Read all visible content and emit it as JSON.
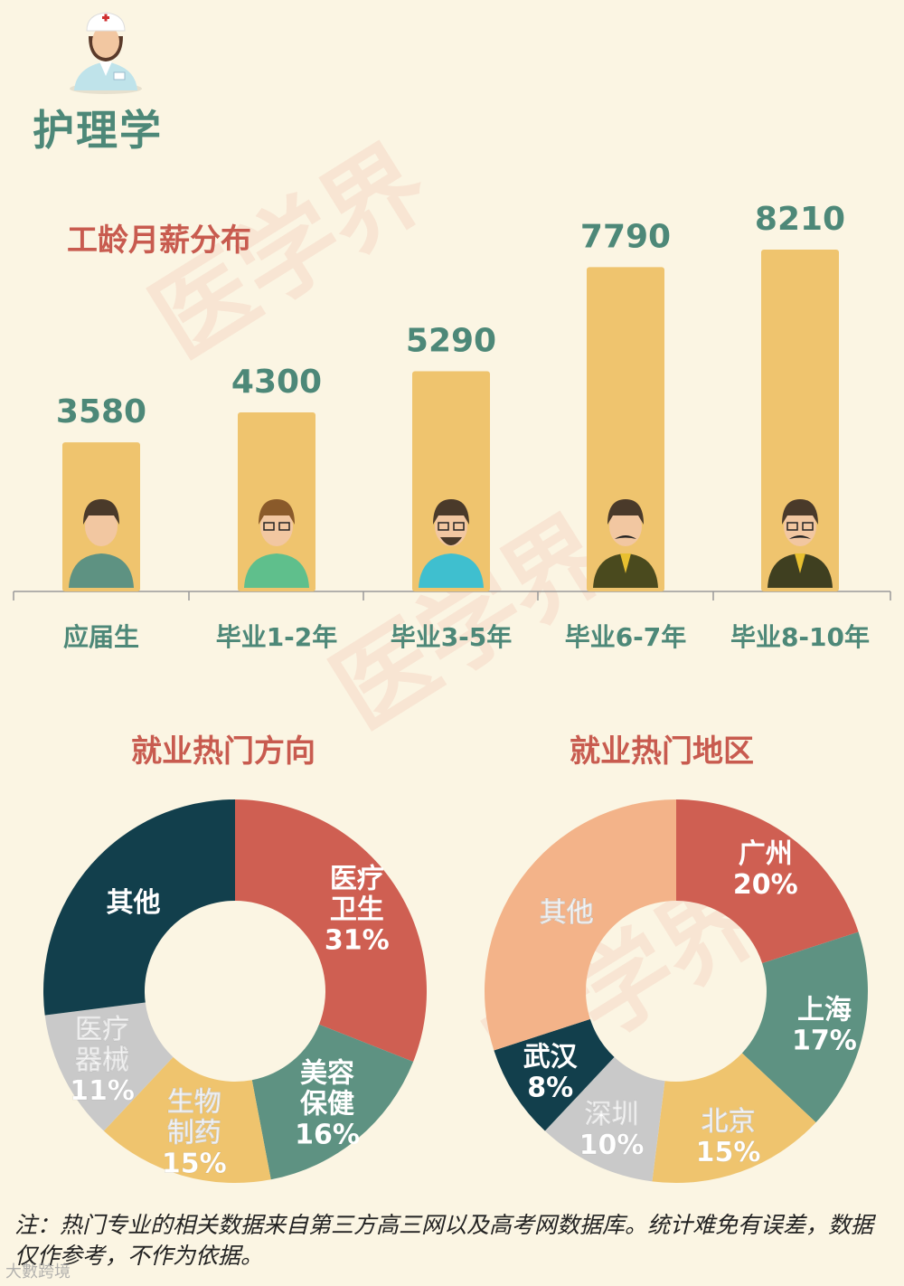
{
  "header": {
    "title": "护理学"
  },
  "sections": {
    "salary_title": "工龄月薪分布",
    "direction_title": "就业热门方向",
    "region_title": "就业热门地区"
  },
  "colors": {
    "background": "#fbf5e3",
    "bar": "#efc46e",
    "title_green": "#4d8878",
    "section_red": "#c85b4f"
  },
  "watermark": "医学界",
  "footnote": "注：热门专业的相关数据来自第三方高三网以及高考网数据库。统计难免有误差，数据仅作参考，不作为依据。",
  "brand": "大數跨境",
  "chart_data": [
    {
      "type": "bar",
      "title": "工龄月薪分布",
      "categories": [
        "应届生",
        "毕业1-2年",
        "毕业3-5年",
        "毕业6-7年",
        "毕业8-10年"
      ],
      "values": [
        3580,
        4300,
        5290,
        7790,
        8210
      ],
      "value_labels": [
        "3580",
        "4300",
        "5290",
        "7790",
        "8210"
      ],
      "icons": [
        "young-man-icon",
        "man-with-glasses-icon",
        "bearded-man-icon",
        "mustache-man-icon",
        "mustache-glasses-man-icon"
      ],
      "ylim": [
        0,
        9000
      ],
      "grid": false
    },
    {
      "type": "pie",
      "donut": true,
      "title": "就业热门方向",
      "slices": [
        {
          "label": "医疗卫生",
          "lines": [
            "医疗",
            "卫生"
          ],
          "pct_text": "31%",
          "value": 31,
          "color": "#cf5f52"
        },
        {
          "label": "美容保健",
          "lines": [
            "美容",
            "保健"
          ],
          "pct_text": "16%",
          "value": 16,
          "color": "#5e9282"
        },
        {
          "label": "生物制药",
          "lines": [
            "生物",
            "制药"
          ],
          "pct_text": "15%",
          "value": 15,
          "color": "#efc46e"
        },
        {
          "label": "医疗器械",
          "lines": [
            "医疗",
            "器械"
          ],
          "pct_text": "11%",
          "value": 11,
          "color": "#c9c9c9"
        },
        {
          "label": "其他",
          "lines": [
            "其他"
          ],
          "pct_text": "",
          "value": 27,
          "color": "#123f4c"
        }
      ]
    },
    {
      "type": "pie",
      "donut": true,
      "title": "就业热门地区",
      "slices": [
        {
          "label": "广州",
          "lines": [
            "广州"
          ],
          "pct_text": "20%",
          "value": 20,
          "color": "#cf5f52"
        },
        {
          "label": "上海",
          "lines": [
            "上海"
          ],
          "pct_text": "17%",
          "value": 17,
          "color": "#5e9282"
        },
        {
          "label": "北京",
          "lines": [
            "北京"
          ],
          "pct_text": "15%",
          "value": 15,
          "color": "#efc46e"
        },
        {
          "label": "深圳",
          "lines": [
            "深圳"
          ],
          "pct_text": "10%",
          "value": 10,
          "color": "#c9c9c9"
        },
        {
          "label": "武汉",
          "lines": [
            "武汉"
          ],
          "pct_text": "8%",
          "value": 8,
          "color": "#123f4c"
        },
        {
          "label": "其他",
          "lines": [
            "其他"
          ],
          "pct_text": "",
          "value": 30,
          "color": "#f3b389"
        }
      ]
    }
  ]
}
